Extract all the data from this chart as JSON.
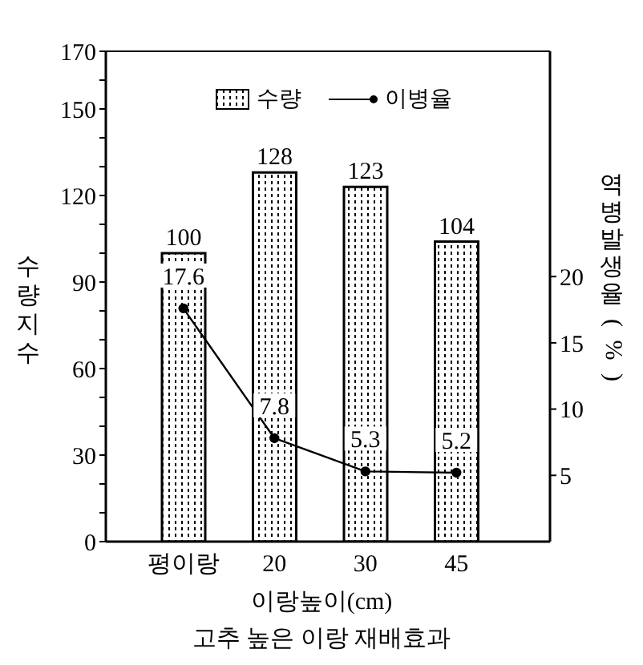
{
  "chart_data": {
    "type": "bar",
    "title": "고추 높은 이랑 재배효과",
    "xlabel": "이랑높이(cm)",
    "ylabel": "수량지수",
    "y2label": "역병발생율(%)",
    "categories": [
      "평이랑",
      "20",
      "30",
      "45"
    ],
    "series": [
      {
        "name": "수량",
        "color": "#000000",
        "values": [
          100,
          128,
          123,
          104
        ]
      },
      {
        "name": "이병율",
        "type": "line",
        "axis": "y2",
        "color": "#000000",
        "values": [
          17.6,
          7.8,
          5.3,
          5.2
        ]
      }
    ],
    "ylim": [
      0,
      170
    ],
    "yticks": [
      0,
      {
        "value": 10,
        "label": null
      },
      {
        "value": 20,
        "label": null
      },
      30,
      {
        "value": 40,
        "label": null
      },
      {
        "value": 50,
        "label": null
      },
      60,
      {
        "value": 70,
        "label": null
      },
      {
        "value": 80,
        "label": null
      },
      90,
      {
        "value": 100,
        "label": null
      },
      {
        "value": 110,
        "label": null
      },
      120,
      {
        "value": 130,
        "label": null
      },
      {
        "value": 140,
        "label": null
      },
      150,
      {
        "value": 160,
        "label": null
      },
      170
    ],
    "y2lim": [
      0,
      37
    ],
    "y2ticks": [
      5,
      10,
      15,
      20
    ],
    "data_labels": true,
    "legend": "top",
    "marker": "circle",
    "line_style": "solid"
  }
}
